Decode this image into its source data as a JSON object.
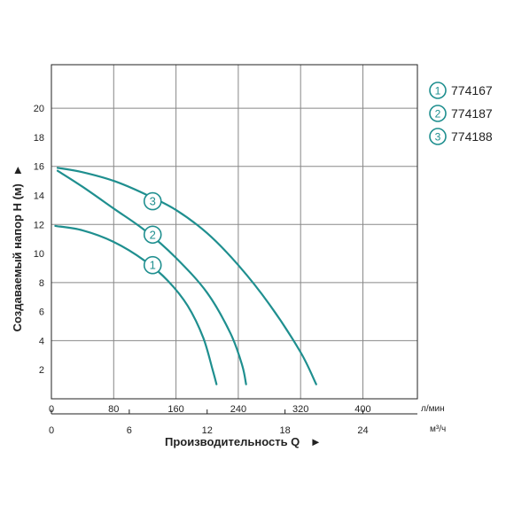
{
  "chart_data": {
    "type": "line",
    "ylabel": "Создаваемый напор Н (м)",
    "ylabel_arrow": "►",
    "xlabel": "Производительность Q",
    "xlabel_arrow": "►",
    "x_unit_primary": "л/мин",
    "x_unit_secondary": "м³/ч",
    "xlim": [
      0,
      470
    ],
    "ylim": [
      0,
      23
    ],
    "x_ticks": [
      0,
      80,
      160,
      240,
      320,
      400
    ],
    "x_gridlines": [
      80,
      160,
      240,
      320,
      400
    ],
    "y_ticks": [
      2,
      4,
      6,
      8,
      10,
      12,
      14,
      16,
      18,
      20
    ],
    "y_gridlines": [
      4,
      8,
      12,
      16,
      20
    ],
    "secondary_ticks": [
      {
        "label": "0",
        "value_lpm": 0
      },
      {
        "label": "6",
        "value_lpm": 100
      },
      {
        "label": "12",
        "value_lpm": 200
      },
      {
        "label": "18",
        "value_lpm": 300
      },
      {
        "label": "24",
        "value_lpm": 400
      }
    ],
    "grid": true,
    "legend_position": "right-top",
    "line_color": "#1f8f8f",
    "series": [
      {
        "name": "774167",
        "number": "1",
        "x": [
          5,
          40,
          80,
          120,
          150,
          175,
          195,
          207,
          212
        ],
        "y": [
          11.9,
          11.6,
          10.8,
          9.5,
          8.1,
          6.4,
          4.2,
          2.0,
          1.0
        ],
        "marker_at": [
          130,
          9.2
        ]
      },
      {
        "name": "774187",
        "number": "2",
        "x": [
          8,
          40,
          80,
          120,
          160,
          200,
          230,
          245,
          250
        ],
        "y": [
          15.7,
          14.6,
          13.1,
          11.6,
          9.7,
          7.3,
          4.5,
          2.3,
          1.0
        ],
        "marker_at": [
          130,
          11.3
        ]
      },
      {
        "name": "774188",
        "number": "3",
        "x": [
          8,
          40,
          80,
          120,
          160,
          200,
          240,
          280,
          320,
          340
        ],
        "y": [
          15.9,
          15.6,
          15.0,
          14.1,
          13.0,
          11.4,
          9.2,
          6.5,
          3.2,
          1.0
        ],
        "marker_at": [
          130,
          13.6
        ]
      }
    ]
  }
}
